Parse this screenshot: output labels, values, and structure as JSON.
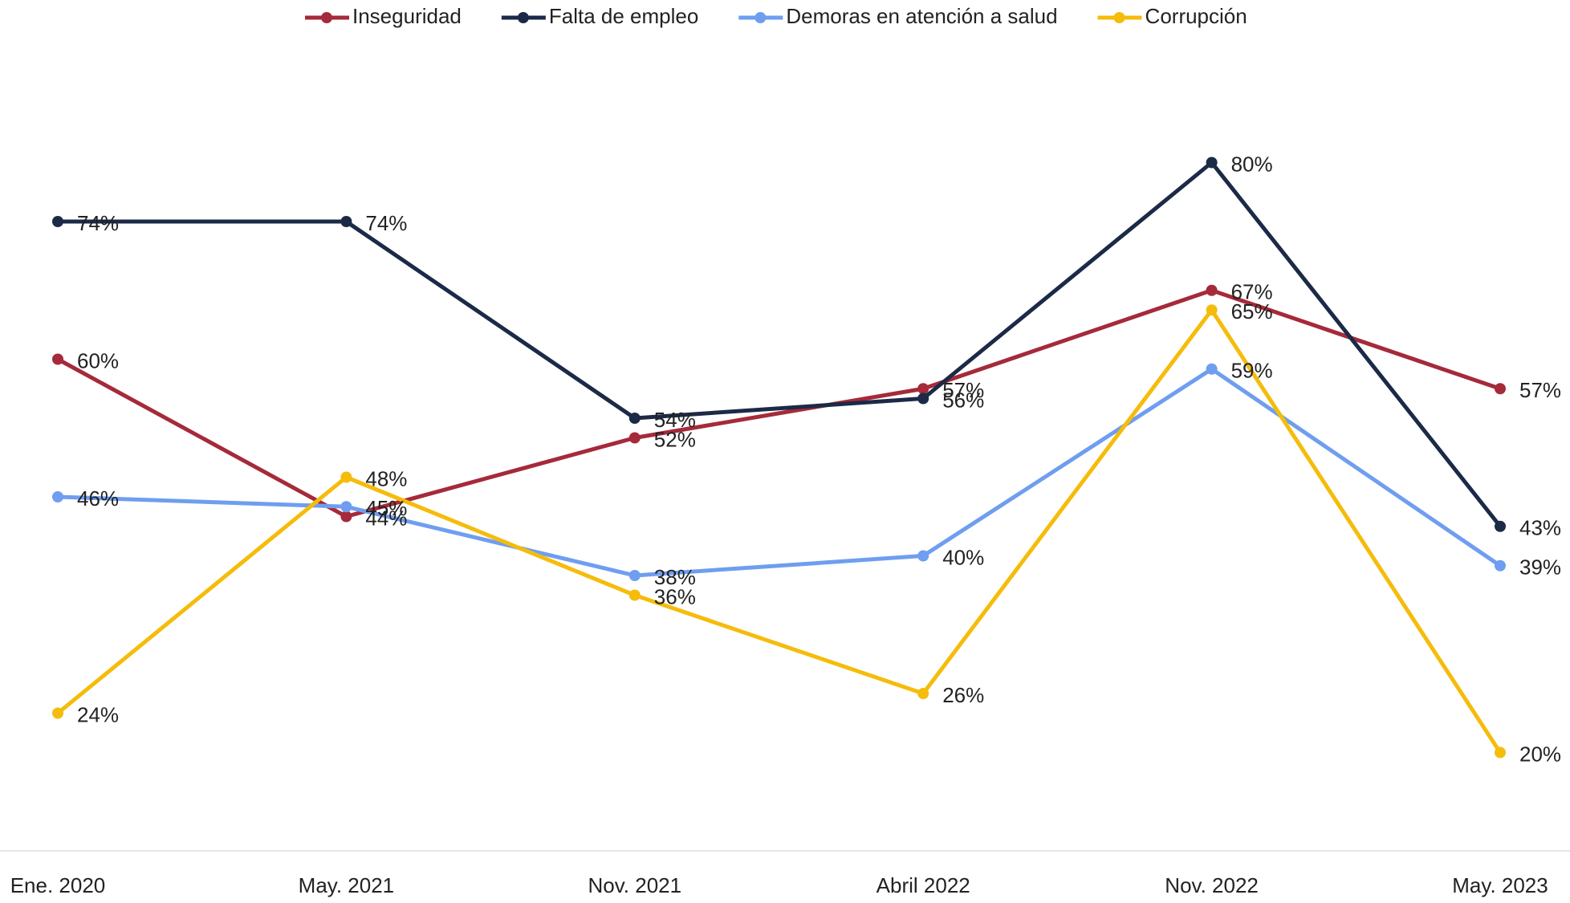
{
  "chart_data": {
    "type": "line",
    "categories": [
      "Ene. 2020",
      "May. 2021",
      "Nov. 2021",
      "Abril 2022",
      "Nov. 2022",
      "May. 2023"
    ],
    "series": [
      {
        "name": "Inseguridad",
        "color": "#a52a3a",
        "values": [
          60,
          44,
          52,
          57,
          67,
          57
        ],
        "value_labels": [
          "60%",
          "44%",
          "52%",
          "57%",
          "67%",
          "57%"
        ]
      },
      {
        "name": "Falta de empleo",
        "color": "#1b2a47",
        "values": [
          74,
          74,
          54,
          56,
          80,
          43
        ],
        "value_labels": [
          "74%",
          "74%",
          "54%",
          "56%",
          "80%",
          "43%"
        ]
      },
      {
        "name": "Demoras en atención a salud",
        "color": "#6f9ef0",
        "values": [
          46,
          45,
          38,
          40,
          59,
          39
        ],
        "value_labels": [
          "46%",
          "45%",
          "38%",
          "40%",
          "59%",
          "39%"
        ]
      },
      {
        "name": "Corrupción",
        "color": "#f5bc0c",
        "values": [
          24,
          48,
          36,
          26,
          65,
          20
        ],
        "value_labels": [
          "24%",
          "48%",
          "36%",
          "26%",
          "65%",
          "20%"
        ]
      }
    ],
    "ylim": [
      10,
      96
    ],
    "legend": "top"
  }
}
